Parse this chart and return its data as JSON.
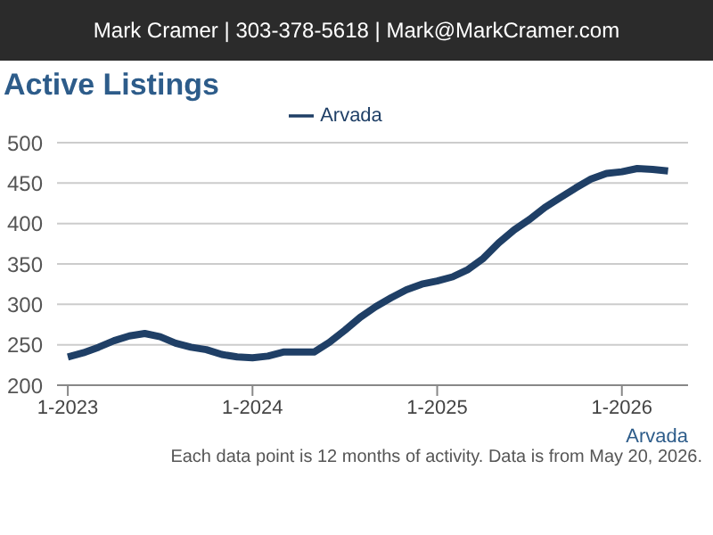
{
  "chart_data": {
    "type": "line",
    "title": "Active Listings",
    "subtitle": "Mark Cramer | 303-378-5618 | Mark@MarkCramer.com",
    "xlabel": "Arvada",
    "x": [
      "2023-01",
      "2023-02",
      "2023-03",
      "2023-04",
      "2023-05",
      "2023-06",
      "2023-07",
      "2023-08",
      "2023-09",
      "2023-10",
      "2023-11",
      "2023-12",
      "2024-01",
      "2024-02",
      "2024-03",
      "2024-04",
      "2024-05",
      "2024-06",
      "2024-07",
      "2024-08",
      "2024-09",
      "2024-10",
      "2024-11",
      "2024-12",
      "2025-01",
      "2025-02",
      "2025-03",
      "2025-04",
      "2025-05",
      "2025-06",
      "2025-07",
      "2025-08",
      "2025-09",
      "2025-10",
      "2025-11",
      "2025-12",
      "2026-01",
      "2026-02",
      "2026-03",
      "2026-04"
    ],
    "series": [
      {
        "name": "Arvada",
        "color": "#1f3f66",
        "values": [
          235,
          240,
          247,
          255,
          261,
          264,
          260,
          252,
          247,
          244,
          238,
          235,
          234,
          236,
          241,
          241,
          241,
          253,
          268,
          284,
          297,
          308,
          318,
          325,
          329,
          334,
          343,
          357,
          376,
          392,
          405,
          420,
          432,
          444,
          455,
          462,
          464,
          468,
          467,
          465
        ]
      }
    ],
    "xlim": [
      "2022-12-10",
      "2026-05-10"
    ],
    "xticks": [
      {
        "value": "2023-01",
        "label": "1-2023"
      },
      {
        "value": "2024-01",
        "label": "1-2024"
      },
      {
        "value": "2025-01",
        "label": "1-2025"
      },
      {
        "value": "2026-01",
        "label": "1-2026"
      }
    ],
    "ylim": [
      200,
      500
    ],
    "yticks": [
      200,
      250,
      300,
      350,
      400,
      450,
      500
    ],
    "grid": "y",
    "legend": "top",
    "marker": "none",
    "line_style": "solid",
    "annotations": [
      "Each data point is 12 months of activity. Data is from May 20, 2026."
    ]
  }
}
